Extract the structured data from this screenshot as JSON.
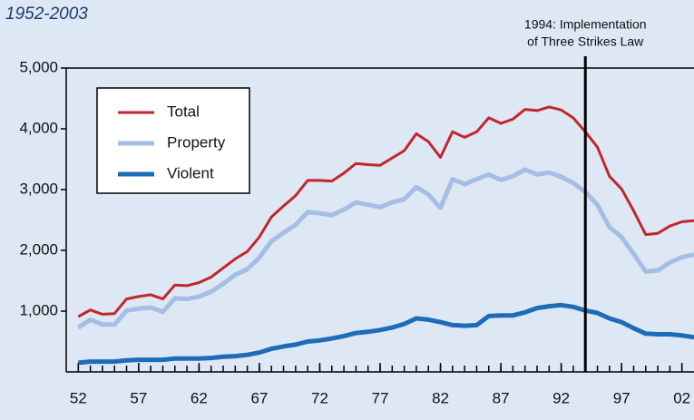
{
  "chart_data": {
    "type": "line",
    "title": "1952-2003",
    "annotation": {
      "text": [
        "1994: Implementation",
        "of Three Strikes Law"
      ],
      "x": 1994
    },
    "x": [
      1952,
      1953,
      1954,
      1955,
      1956,
      1957,
      1958,
      1959,
      1960,
      1961,
      1962,
      1963,
      1964,
      1965,
      1966,
      1967,
      1968,
      1969,
      1970,
      1971,
      1972,
      1973,
      1974,
      1975,
      1976,
      1977,
      1978,
      1979,
      1980,
      1981,
      1982,
      1983,
      1984,
      1985,
      1986,
      1987,
      1988,
      1989,
      1990,
      1991,
      1992,
      1993,
      1994,
      1995,
      1996,
      1997,
      1998,
      1999,
      2000,
      2001,
      2002,
      2003
    ],
    "series": [
      {
        "name": "Total",
        "color": "#c1272d",
        "values": [
          910,
          1020,
          950,
          960,
          1200,
          1240,
          1270,
          1200,
          1430,
          1420,
          1470,
          1560,
          1710,
          1860,
          1980,
          2220,
          2550,
          2730,
          2900,
          3150,
          3150,
          3140,
          3270,
          3430,
          3410,
          3400,
          3520,
          3640,
          3920,
          3790,
          3530,
          3950,
          3860,
          3950,
          4180,
          4090,
          4160,
          4320,
          4300,
          4360,
          4310,
          4180,
          3950,
          3700,
          3220,
          3010,
          2650,
          2260,
          2280,
          2400,
          2470,
          2490
        ]
      },
      {
        "name": "Property",
        "color": "#a4bee4",
        "values": [
          730,
          860,
          780,
          780,
          1010,
          1040,
          1060,
          990,
          1210,
          1200,
          1240,
          1320,
          1450,
          1600,
          1690,
          1880,
          2150,
          2290,
          2420,
          2630,
          2610,
          2580,
          2670,
          2790,
          2750,
          2710,
          2790,
          2840,
          3040,
          2920,
          2700,
          3170,
          3090,
          3170,
          3250,
          3160,
          3220,
          3330,
          3250,
          3280,
          3210,
          3110,
          2960,
          2750,
          2380,
          2220,
          1940,
          1650,
          1670,
          1800,
          1890,
          1930
        ]
      },
      {
        "name": "Violent",
        "color": "#1f6cb6",
        "values": [
          150,
          170,
          170,
          170,
          190,
          200,
          200,
          200,
          220,
          220,
          220,
          230,
          250,
          260,
          280,
          320,
          380,
          420,
          450,
          500,
          520,
          550,
          590,
          640,
          660,
          690,
          730,
          790,
          880,
          860,
          820,
          770,
          760,
          770,
          920,
          930,
          930,
          980,
          1050,
          1080,
          1100,
          1070,
          1010,
          970,
          880,
          820,
          720,
          630,
          620,
          620,
          600,
          570
        ]
      }
    ],
    "xlim": [
      1951,
      2003
    ],
    "ylim": [
      0,
      5000
    ],
    "xticks": [
      {
        "value": 1952,
        "label": "52"
      },
      {
        "value": 1957,
        "label": "57"
      },
      {
        "value": 1962,
        "label": "62"
      },
      {
        "value": 1967,
        "label": "67"
      },
      {
        "value": 1972,
        "label": "72"
      },
      {
        "value": 1977,
        "label": "77"
      },
      {
        "value": 1982,
        "label": "82"
      },
      {
        "value": 1987,
        "label": "87"
      },
      {
        "value": 1992,
        "label": "92"
      },
      {
        "value": 1997,
        "label": "97"
      },
      {
        "value": 2002,
        "label": "02"
      }
    ],
    "yticks": [
      {
        "value": 1000,
        "label": "1,000"
      },
      {
        "value": 2000,
        "label": "2,000"
      },
      {
        "value": 3000,
        "label": "3,000"
      },
      {
        "value": 4000,
        "label": "4,000"
      },
      {
        "value": 5000,
        "label": "5,000"
      }
    ],
    "legend": "upper left"
  }
}
